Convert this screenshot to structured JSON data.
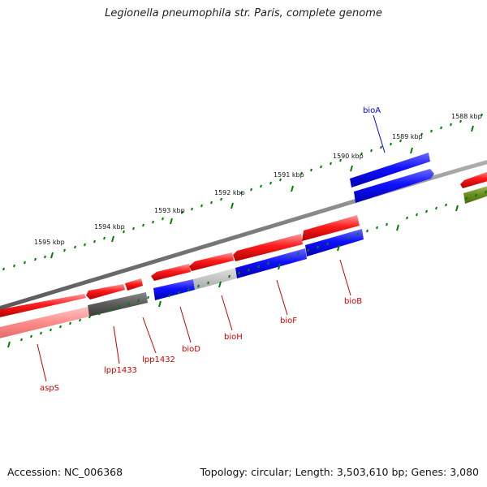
{
  "title": "Legionella pneumophila str. Paris, complete genome",
  "footer": {
    "accession": "Accession: NC_006368",
    "topology": "Topology: circular; Length: 3,503,610 bp; Genes: 3,080"
  },
  "colors": {
    "forward_strand": "#ff0000",
    "reverse_strand": "#0000ff",
    "pseudo_forward": "#ff8a8a",
    "gray_gene": "#5c5c5c",
    "light_gray_gene": "#c0c0c0",
    "olive_gene": "#6b8e23",
    "backbone": "#808080",
    "tick": "#008000"
  },
  "kbp_ticks": [
    {
      "label": "1588 kbp"
    },
    {
      "label": "1589 kbp"
    },
    {
      "label": "1590 kbp"
    },
    {
      "label": "1591 kbp"
    },
    {
      "label": "1592 kbp"
    },
    {
      "label": "1593 kbp"
    },
    {
      "label": "1594 kbp"
    },
    {
      "label": "1595 kbp"
    }
  ],
  "gene_labels": [
    {
      "name": "bioA",
      "color": "#0000ff"
    },
    {
      "name": "bioB",
      "color": "#cc0000"
    },
    {
      "name": "bioF",
      "color": "#cc0000"
    },
    {
      "name": "bioH",
      "color": "#cc0000"
    },
    {
      "name": "bioD",
      "color": "#cc0000"
    },
    {
      "name": "lpp1432",
      "color": "#cc0000"
    },
    {
      "name": "lpp1433",
      "color": "#cc0000"
    },
    {
      "name": "aspS",
      "color": "#cc0000"
    }
  ]
}
